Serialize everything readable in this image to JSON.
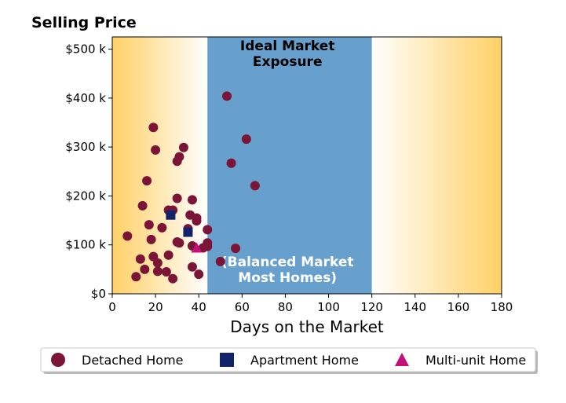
{
  "chart_data": {
    "type": "scatter",
    "title": "Selling Price",
    "xlabel": "Days on the Market",
    "ylabel": "",
    "xlim": [
      0,
      180
    ],
    "ylim": [
      0,
      525000
    ],
    "x_ticks": [
      0,
      20,
      40,
      60,
      80,
      100,
      120,
      140,
      160,
      180
    ],
    "x_tick_labels": [
      "0",
      "20",
      "40",
      "60",
      "80",
      "100",
      "120",
      "140",
      "160",
      "180"
    ],
    "y_ticks": [
      0,
      100000,
      200000,
      300000,
      400000,
      500000
    ],
    "y_tick_labels": [
      "$0",
      "$100 k",
      "$200 k",
      "$300 k",
      "$400 k",
      "$500 k"
    ],
    "grid": false,
    "legend_position": "bottom",
    "bands": {
      "ideal": {
        "x_range": [
          44,
          120
        ],
        "color": "#67a0cc"
      },
      "gradient_color": "#ffd066"
    },
    "annotations": [
      {
        "text_lines": [
          "Ideal Market",
          "Exposure"
        ],
        "x": 81,
        "placement": "top"
      },
      {
        "text_lines": [
          "(Balanced Market",
          "Most Homes)"
        ],
        "x": 81,
        "placement": "bottom"
      }
    ],
    "series": [
      {
        "name": "Detached Home",
        "marker": "circle",
        "color": "#7a1538",
        "points": [
          [
            7,
            118000
          ],
          [
            11,
            35000
          ],
          [
            13,
            71000
          ],
          [
            14,
            180000
          ],
          [
            15,
            50000
          ],
          [
            16,
            231000
          ],
          [
            17,
            141000
          ],
          [
            18,
            111000
          ],
          [
            19,
            340000
          ],
          [
            19,
            76000
          ],
          [
            20,
            294000
          ],
          [
            21,
            46000
          ],
          [
            21,
            63000
          ],
          [
            23,
            135000
          ],
          [
            25,
            45000
          ],
          [
            26,
            79000
          ],
          [
            26,
            171000
          ],
          [
            28,
            31000
          ],
          [
            28,
            171000
          ],
          [
            30,
            271000
          ],
          [
            30,
            195000
          ],
          [
            31,
            280000
          ],
          [
            30,
            106000
          ],
          [
            31,
            104000
          ],
          [
            33,
            299000
          ],
          [
            35,
            133000
          ],
          [
            36,
            161000
          ],
          [
            37,
            192000
          ],
          [
            37,
            55000
          ],
          [
            37,
            98000
          ],
          [
            39,
            155000
          ],
          [
            39,
            149000
          ],
          [
            40,
            40000
          ],
          [
            42,
            94000
          ],
          [
            44,
            131000
          ],
          [
            44,
            104000
          ],
          [
            44,
            97000
          ],
          [
            50,
            66000
          ],
          [
            53,
            404000
          ],
          [
            55,
            267000
          ],
          [
            57,
            93000
          ],
          [
            62,
            316000
          ],
          [
            66,
            221000
          ]
        ]
      },
      {
        "name": "Apartment Home",
        "marker": "square",
        "color": "#12236b",
        "points": [
          [
            27,
            161000
          ],
          [
            35,
            126000
          ]
        ]
      },
      {
        "name": "Multi-unit Home",
        "marker": "triangle",
        "color": "#c2127a",
        "points": [
          [
            39,
            94000
          ]
        ]
      }
    ]
  }
}
